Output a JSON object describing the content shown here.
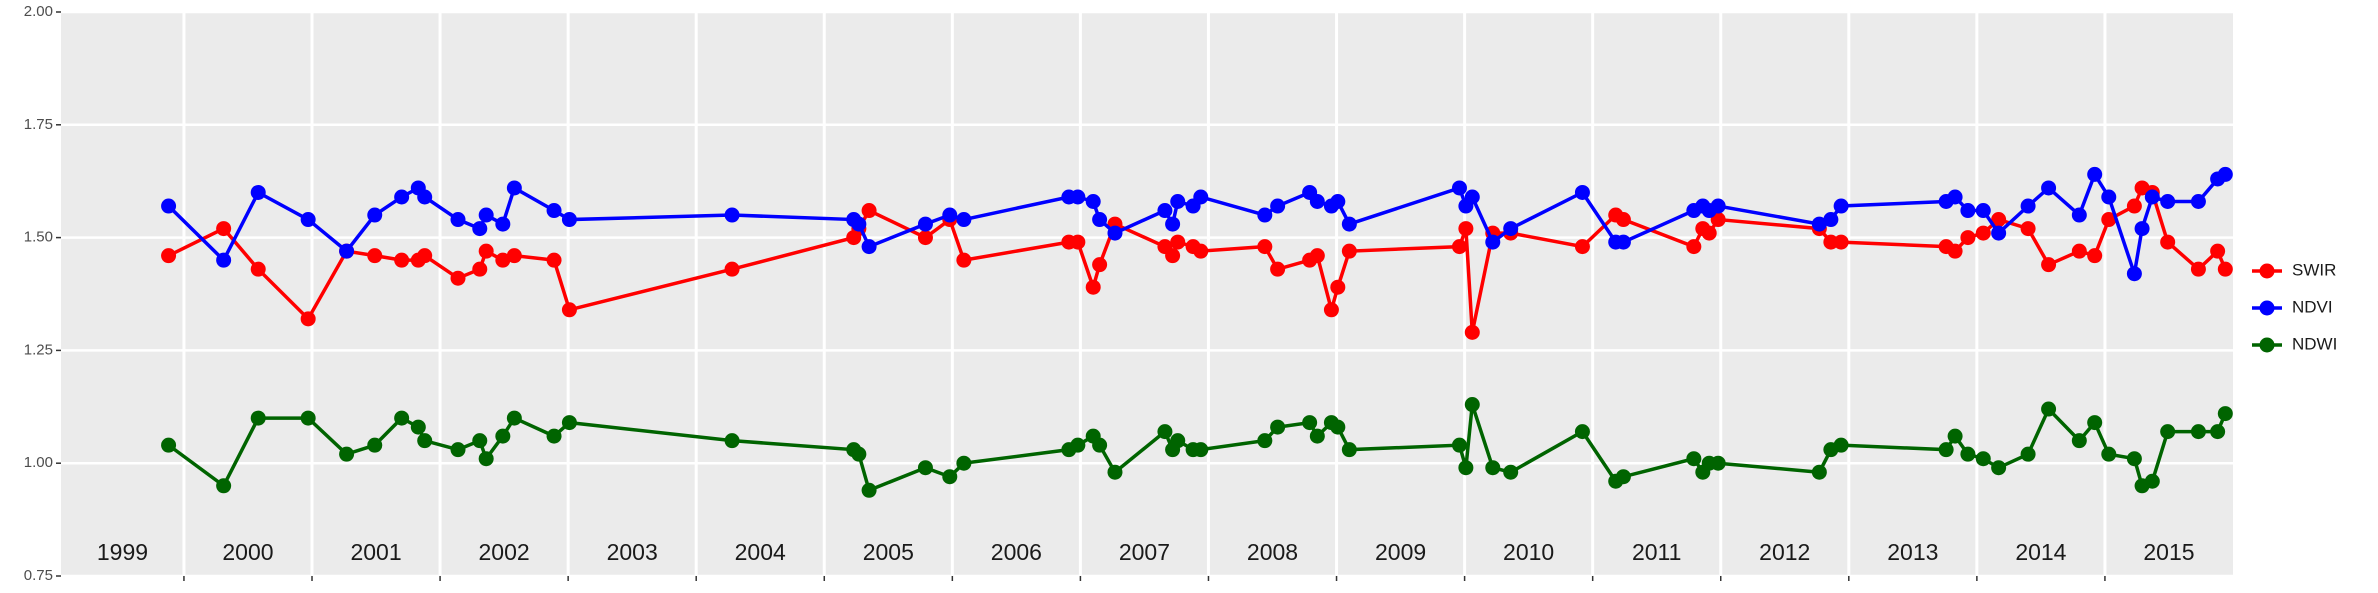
{
  "chart_data": {
    "type": "line",
    "x": [
      1999.88,
      2000.31,
      2000.58,
      2000.97,
      2001.27,
      2001.49,
      2001.7,
      2001.83,
      2001.88,
      2002.14,
      2002.31,
      2002.36,
      2002.49,
      2002.58,
      2002.89,
      2003.01,
      2004.28,
      2005.23,
      2005.27,
      2005.35,
      2005.79,
      2005.98,
      2006.09,
      2006.91,
      2006.98,
      2007.1,
      2007.15,
      2007.27,
      2007.66,
      2007.72,
      2007.76,
      2007.88,
      2007.94,
      2008.44,
      2008.54,
      2008.79,
      2008.85,
      2008.96,
      2009.01,
      2009.1,
      2009.96,
      2010.01,
      2010.06,
      2010.22,
      2010.36,
      2010.92,
      2011.18,
      2011.24,
      2011.79,
      2011.86,
      2011.91,
      2011.98,
      2012.77,
      2012.86,
      2012.94,
      2013.76,
      2013.83,
      2013.93,
      2014.05,
      2014.17,
      2014.4,
      2014.56,
      2014.8,
      2014.92,
      2015.03,
      2015.23,
      2015.29,
      2015.37,
      2015.49,
      2015.73,
      2015.88,
      2015.94
    ],
    "series": [
      {
        "name": "SWIR",
        "color": "#ff0000",
        "values": [
          1.46,
          1.52,
          1.43,
          1.32,
          1.47,
          1.46,
          1.45,
          1.45,
          1.46,
          1.41,
          1.43,
          1.47,
          1.45,
          1.46,
          1.45,
          1.34,
          1.43,
          1.5,
          1.52,
          1.56,
          1.5,
          1.54,
          1.45,
          1.49,
          1.49,
          1.39,
          1.44,
          1.53,
          1.48,
          1.46,
          1.49,
          1.48,
          1.47,
          1.48,
          1.43,
          1.45,
          1.46,
          1.34,
          1.39,
          1.47,
          1.48,
          1.52,
          1.29,
          1.51,
          1.51,
          1.48,
          1.55,
          1.54,
          1.48,
          1.52,
          1.51,
          1.54,
          1.52,
          1.49,
          1.49,
          1.48,
          1.47,
          1.5,
          1.51,
          1.54,
          1.52,
          1.44,
          1.47,
          1.46,
          1.54,
          1.57,
          1.61,
          1.6,
          1.49,
          1.43,
          1.47,
          1.43
        ]
      },
      {
        "name": "NDVI",
        "color": "#0000ff",
        "values": [
          1.57,
          1.45,
          1.6,
          1.54,
          1.47,
          1.55,
          1.59,
          1.61,
          1.59,
          1.54,
          1.52,
          1.55,
          1.53,
          1.61,
          1.56,
          1.54,
          1.55,
          1.54,
          1.53,
          1.48,
          1.53,
          1.55,
          1.54,
          1.59,
          1.59,
          1.58,
          1.54,
          1.51,
          1.56,
          1.53,
          1.58,
          1.57,
          1.59,
          1.55,
          1.57,
          1.6,
          1.58,
          1.57,
          1.58,
          1.53,
          1.61,
          1.57,
          1.59,
          1.49,
          1.52,
          1.6,
          1.49,
          1.49,
          1.56,
          1.57,
          1.56,
          1.57,
          1.53,
          1.54,
          1.57,
          1.58,
          1.59,
          1.56,
          1.56,
          1.51,
          1.57,
          1.61,
          1.55,
          1.64,
          1.59,
          1.42,
          1.52,
          1.59,
          1.58,
          1.58,
          1.63,
          1.64
        ]
      },
      {
        "name": "NDWI",
        "color": "#006400",
        "values": [
          1.04,
          0.95,
          1.1,
          1.1,
          1.02,
          1.04,
          1.1,
          1.08,
          1.05,
          1.03,
          1.05,
          1.01,
          1.06,
          1.1,
          1.06,
          1.09,
          1.05,
          1.03,
          1.02,
          0.94,
          0.99,
          0.97,
          1.0,
          1.03,
          1.04,
          1.06,
          1.04,
          0.98,
          1.07,
          1.03,
          1.05,
          1.03,
          1.03,
          1.05,
          1.08,
          1.09,
          1.06,
          1.09,
          1.08,
          1.03,
          1.04,
          0.99,
          1.13,
          0.99,
          0.98,
          1.07,
          0.96,
          0.97,
          1.01,
          0.98,
          1.0,
          1.0,
          0.98,
          1.03,
          1.04,
          1.03,
          1.06,
          1.02,
          1.01,
          0.99,
          1.02,
          1.12,
          1.05,
          1.09,
          1.02,
          1.01,
          0.95,
          0.96,
          1.07,
          1.07,
          1.07,
          1.11
        ]
      }
    ],
    "xlim": [
      1999.04,
      2016
    ],
    "xticks": [
      2000,
      2001,
      2002,
      2003,
      2004,
      2005,
      2006,
      2007,
      2008,
      2009,
      2010,
      2011,
      2012,
      2013,
      2014,
      2015
    ],
    "year_labels": [
      "1999",
      "2000",
      "2001",
      "2002",
      "2003",
      "2004",
      "2005",
      "2006",
      "2007",
      "2008",
      "2009",
      "2010",
      "2011",
      "2012",
      "2013",
      "2014",
      "2015"
    ],
    "ylim": [
      0.75,
      2.0
    ],
    "yticks": [
      {
        "value": 0.75,
        "label": "0.75"
      },
      {
        "value": 1.0,
        "label": "1.00"
      },
      {
        "value": 1.25,
        "label": "1.25"
      },
      {
        "value": 1.5,
        "label": "1.50"
      },
      {
        "value": 1.75,
        "label": "1.75"
      },
      {
        "value": 2.0,
        "label": "2.00"
      }
    ],
    "grid": true,
    "legend": "right"
  }
}
